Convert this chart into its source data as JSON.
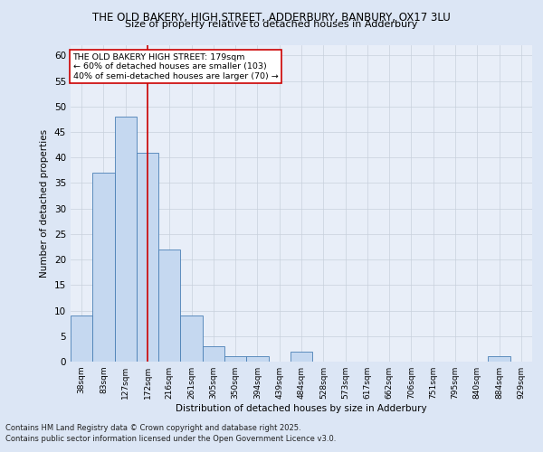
{
  "title_line1": "THE OLD BAKERY, HIGH STREET, ADDERBURY, BANBURY, OX17 3LU",
  "title_line2": "Size of property relative to detached houses in Adderbury",
  "xlabel": "Distribution of detached houses by size in Adderbury",
  "ylabel": "Number of detached properties",
  "categories": [
    "38sqm",
    "83sqm",
    "127sqm",
    "172sqm",
    "216sqm",
    "261sqm",
    "305sqm",
    "350sqm",
    "394sqm",
    "439sqm",
    "484sqm",
    "528sqm",
    "573sqm",
    "617sqm",
    "662sqm",
    "706sqm",
    "751sqm",
    "795sqm",
    "840sqm",
    "884sqm",
    "929sqm"
  ],
  "values": [
    9,
    37,
    48,
    41,
    22,
    9,
    3,
    1,
    1,
    0,
    2,
    0,
    0,
    0,
    0,
    0,
    0,
    0,
    0,
    1,
    0
  ],
  "bar_color": "#c5d8f0",
  "bar_edge_color": "#4a7fb5",
  "grid_color": "#c8d0dc",
  "vline_x": 3,
  "vline_color": "#cc0000",
  "annotation_text": "THE OLD BAKERY HIGH STREET: 179sqm\n← 60% of detached houses are smaller (103)\n40% of semi-detached houses are larger (70) →",
  "annotation_box_color": "#ffffff",
  "annotation_box_edge": "#cc0000",
  "ylim": [
    0,
    62
  ],
  "yticks": [
    0,
    5,
    10,
    15,
    20,
    25,
    30,
    35,
    40,
    45,
    50,
    55,
    60
  ],
  "footer_line1": "Contains HM Land Registry data © Crown copyright and database right 2025.",
  "footer_line2": "Contains public sector information licensed under the Open Government Licence v3.0.",
  "bg_color": "#dce6f5",
  "plot_bg_color": "#e8eef8"
}
